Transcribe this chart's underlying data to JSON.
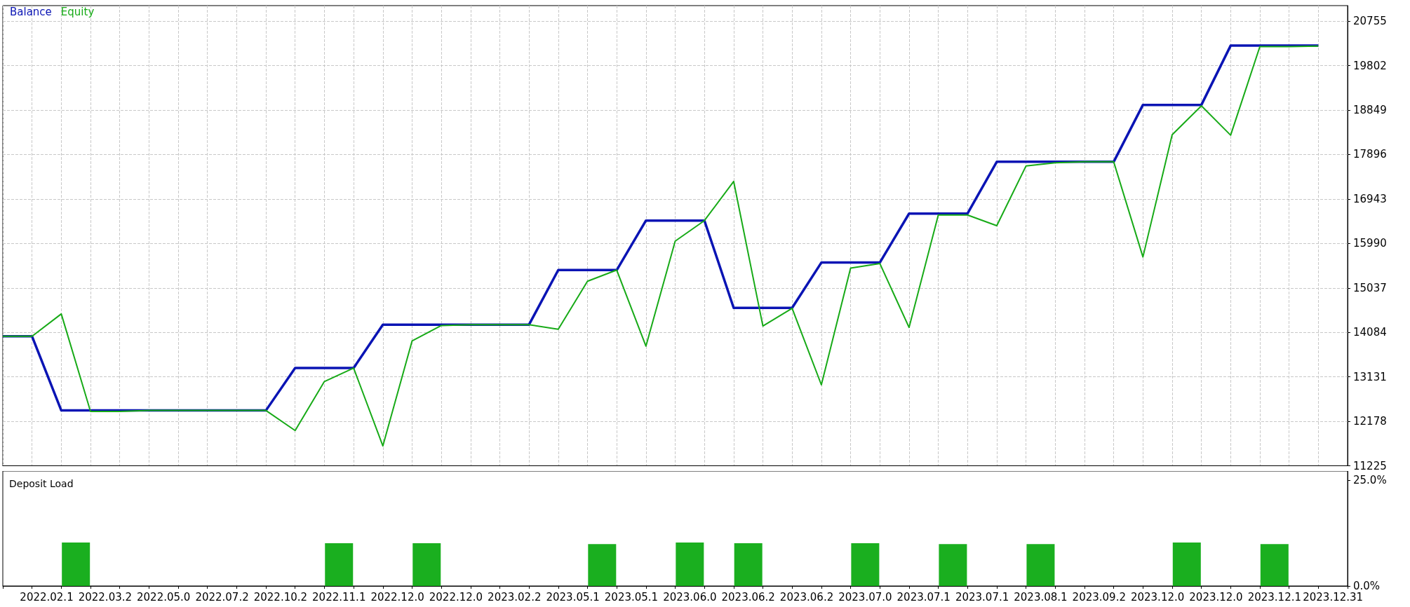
{
  "chart_data": [
    {
      "type": "line",
      "categories": [
        null,
        null,
        null,
        null,
        null,
        null,
        null,
        null,
        null,
        null,
        null,
        null,
        null,
        null,
        null,
        null,
        null,
        null,
        null,
        null,
        null,
        null,
        null,
        null,
        null,
        null,
        null,
        null,
        null,
        null,
        null,
        null,
        null,
        null,
        null,
        null,
        null,
        null,
        null,
        null,
        null,
        null,
        null,
        null,
        null,
        null,
        null
      ],
      "ylim": [
        11225,
        21088
      ],
      "yticks": [
        11225,
        12178,
        13131,
        14084,
        15037,
        15990,
        16943,
        17896,
        18849,
        19802,
        20755
      ],
      "tick_labels": "y",
      "grid": true,
      "legend": "top left",
      "marker": "none",
      "series": [
        {
          "name": "Balance",
          "color": "#0a14b4",
          "values": [
            14000,
            14000,
            12410,
            12410,
            12410,
            12410,
            12410,
            12410,
            12410,
            12410,
            13320,
            13320,
            13320,
            14250,
            14250,
            14250,
            14250,
            14250,
            14250,
            15420,
            15420,
            15420,
            16480,
            16480,
            16480,
            14610,
            14610,
            14610,
            15580,
            15580,
            15580,
            16630,
            16630,
            16630,
            17740,
            17740,
            17740,
            17740,
            17740,
            18960,
            18960,
            18960,
            20230,
            20230,
            20230,
            20230,
            null
          ]
        },
        {
          "name": "Equity",
          "color": "#17aa17",
          "values": [
            14000,
            14000,
            14480,
            12390,
            12390,
            12410,
            12410,
            12410,
            12410,
            12410,
            11980,
            13030,
            13320,
            11650,
            13900,
            14230,
            14250,
            14250,
            14250,
            14150,
            15180,
            15420,
            13790,
            16040,
            16480,
            17320,
            14220,
            14600,
            12960,
            15460,
            15560,
            14190,
            16600,
            16600,
            16370,
            17650,
            17720,
            17740,
            17740,
            15700,
            18320,
            18940,
            18310,
            20210,
            20210,
            20220,
            null
          ]
        }
      ]
    },
    {
      "type": "bar",
      "title": "Deposit Load",
      "categories": [
        null,
        "2022.02.1",
        null,
        "2022.03.2",
        null,
        "2022.05.0",
        null,
        "2022.07.2",
        null,
        "2022.10.2",
        null,
        "2022.11.1",
        null,
        "2022.12.0",
        null,
        "2022.12.0",
        null,
        "2023.02.2",
        null,
        "2023.05.1",
        null,
        "2023.05.1",
        null,
        "2023.06.0",
        null,
        "2023.06.2",
        null,
        "2023.06.2",
        null,
        "2023.07.0",
        null,
        "2023.07.1",
        null,
        "2023.07.1",
        null,
        "2023.08.1",
        null,
        "2023.09.2",
        null,
        "2023.12.0",
        null,
        "2023.12.0",
        null,
        "2023.12.1",
        null,
        "2023.12.31"
      ],
      "ylim": [
        0,
        27.2
      ],
      "yticks": [
        {
          "value": 0,
          "label": "0.0%"
        },
        {
          "value": 25,
          "label": "25.0%"
        }
      ],
      "series": [
        {
          "color": "#1aaf1f",
          "values": [
            null,
            null,
            10.3,
            null,
            null,
            null,
            null,
            null,
            null,
            null,
            null,
            10.1,
            null,
            null,
            10.1,
            null,
            null,
            null,
            null,
            null,
            9.9,
            null,
            null,
            10.3,
            null,
            10.1,
            null,
            null,
            null,
            10.1,
            null,
            null,
            9.9,
            null,
            null,
            9.9,
            null,
            null,
            null,
            null,
            10.3,
            null,
            null,
            9.9,
            null,
            null
          ]
        }
      ]
    }
  ]
}
